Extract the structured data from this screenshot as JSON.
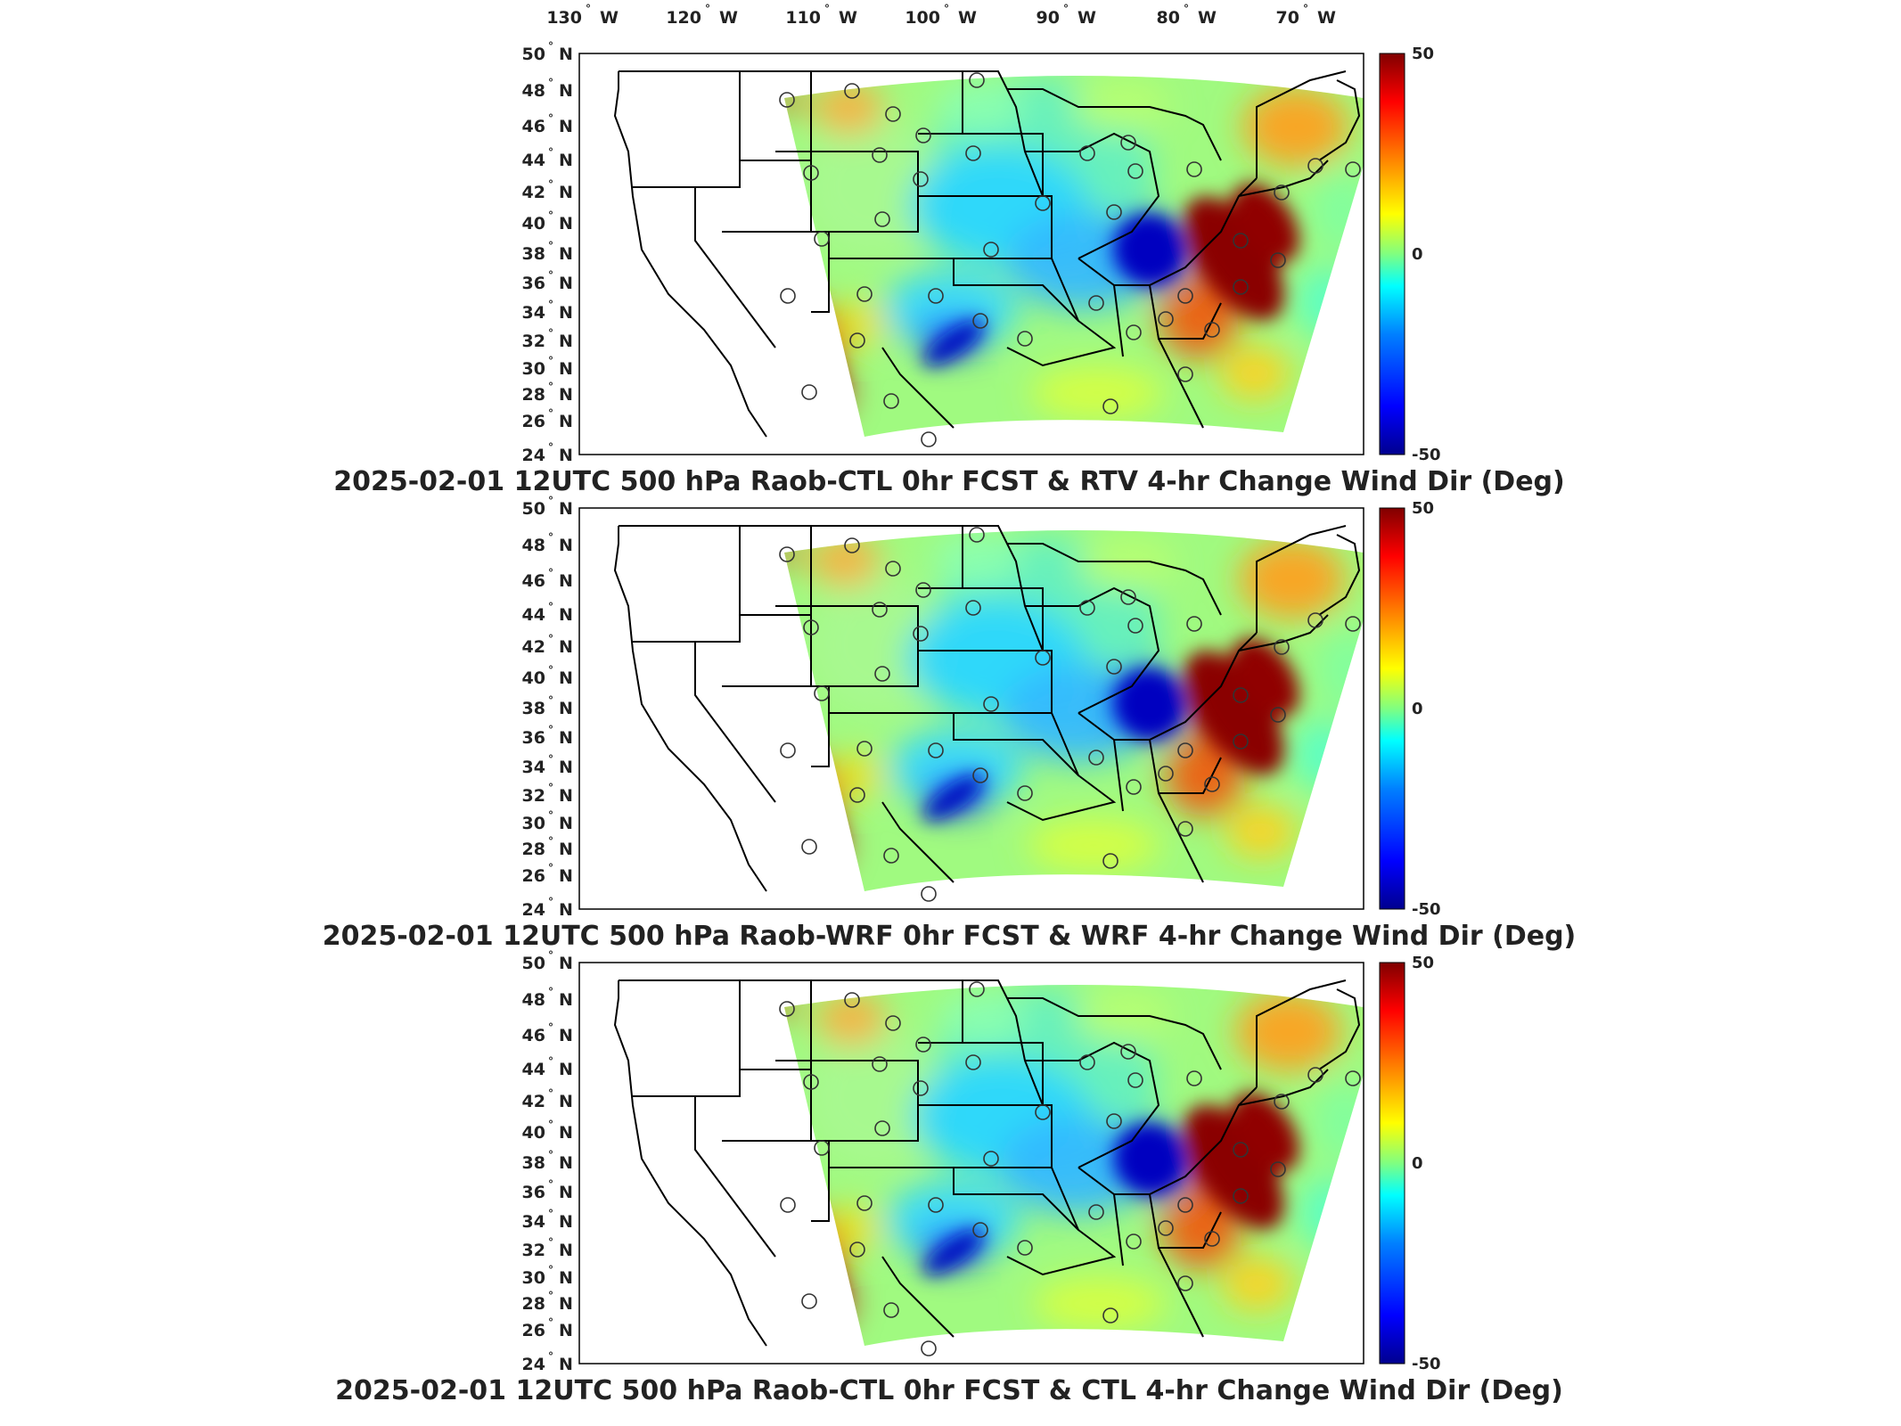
{
  "lon_labels": [
    {
      "deg": "130",
      "hem": "W"
    },
    {
      "deg": "120",
      "hem": "W"
    },
    {
      "deg": "110",
      "hem": "W"
    },
    {
      "deg": "100",
      "hem": "W"
    },
    {
      "deg": "90",
      "hem": "W"
    },
    {
      "deg": "80",
      "hem": "W"
    },
    {
      "deg": "70",
      "hem": "W"
    }
  ],
  "lat_labels": [
    {
      "deg": "50",
      "hem": "N"
    },
    {
      "deg": "48",
      "hem": "N"
    },
    {
      "deg": "46",
      "hem": "N"
    },
    {
      "deg": "44",
      "hem": "N"
    },
    {
      "deg": "42",
      "hem": "N"
    },
    {
      "deg": "40",
      "hem": "N"
    },
    {
      "deg": "38",
      "hem": "N"
    },
    {
      "deg": "36",
      "hem": "N"
    },
    {
      "deg": "34",
      "hem": "N"
    },
    {
      "deg": "32",
      "hem": "N"
    },
    {
      "deg": "30",
      "hem": "N"
    },
    {
      "deg": "28",
      "hem": "N"
    },
    {
      "deg": "26",
      "hem": "N"
    },
    {
      "deg": "24",
      "hem": "N"
    }
  ],
  "degree_symbol": "°",
  "colorbar": {
    "max_label": "50",
    "mid_label": "0",
    "min_label": "-50",
    "colormap": "jet",
    "stops": [
      "#00008f",
      "#0000ff",
      "#0080ff",
      "#00ffff",
      "#80ff80",
      "#ffff00",
      "#ff8000",
      "#ff0000",
      "#800000"
    ]
  },
  "panels": [
    {
      "title": "2025-02-01 12UTC 500 hPa Raob-CTL 0hr FCST & RTV 4-hr Change Wind Dir (Deg)"
    },
    {
      "title": "2025-02-01 12UTC 500 hPa Raob-WRF 0hr FCST & WRF 4-hr Change Wind Dir (Deg)"
    },
    {
      "title": "2025-02-01 12UTC 500 hPa Raob-CTL 0hr FCST & CTL 4-hr Change Wind Dir (Deg)"
    }
  ],
  "colors": {
    "frame": "#000000",
    "text": "#222222",
    "land_outside": "#ffffff"
  }
}
